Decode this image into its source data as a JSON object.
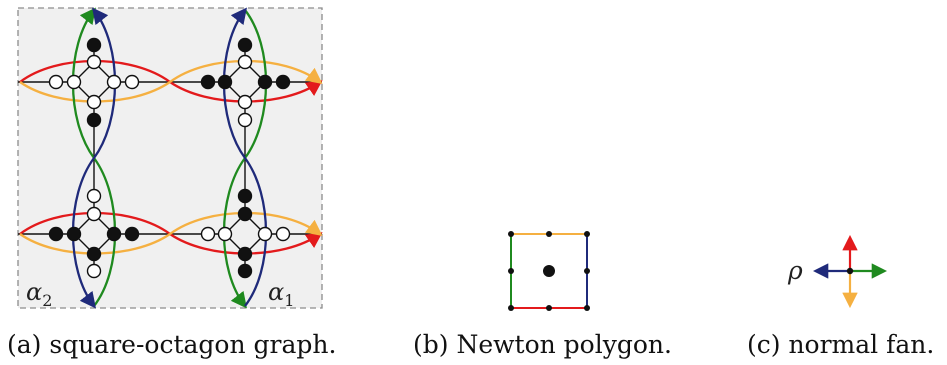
{
  "colors": {
    "red": "#e31a1c",
    "green": "#1f8a1f",
    "navy": "#1f2a7a",
    "orange": "#f5b041",
    "panel_bg": "#f0f0f0",
    "dashed": "#8c8c8c"
  },
  "panel_a": {
    "label_left": "α",
    "label_left_sub": "2",
    "label_right": "α",
    "label_right_sub": "1",
    "caption": "(a) square-octagon graph."
  },
  "panel_b": {
    "caption": "(b) Newton polygon."
  },
  "panel_c": {
    "rho": "ρ",
    "caption": "(c) normal fan."
  }
}
